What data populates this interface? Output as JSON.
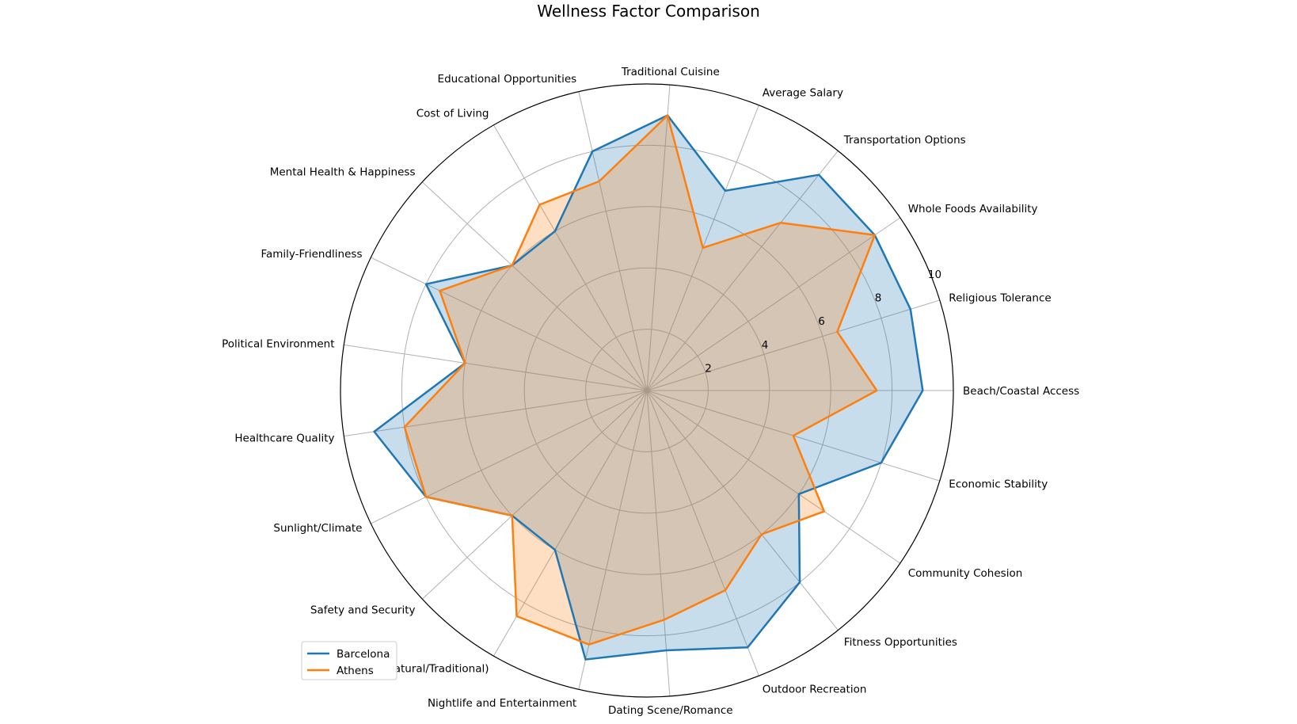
{
  "chart_data": {
    "type": "radar",
    "title": "Wellness Factor Comparison",
    "categories": [
      "Beach/Coastal Access",
      "Religious Tolerance",
      "Whole Foods Availability",
      "Transportation Options",
      "Average Salary",
      "Traditional Cuisine",
      "Educational Opportunities",
      "Cost of Living",
      "Mental Health & Happiness",
      "Family-Friendliness",
      "Political Environment",
      "Healthcare Quality",
      "Sunlight/Climate",
      "Safety and Security",
      "Food Quality (Natural/Traditional)",
      "Nightlife and Entertainment",
      "Dating Scene/Romance",
      "Outdoor Recreation",
      "Fitness Opportunities",
      "Community Cohesion",
      "Economic Stability"
    ],
    "series": [
      {
        "name": "Barcelona",
        "color": "#1f77b4",
        "values": [
          9,
          9,
          9,
          9,
          7,
          9,
          8,
          6,
          6,
          8,
          6,
          9,
          8,
          6,
          6,
          9,
          8.5,
          9,
          8,
          6,
          8
        ]
      },
      {
        "name": "Athens",
        "color": "#ff7f0e",
        "values": [
          7.5,
          6.5,
          9,
          7,
          5,
          9,
          7,
          7,
          6,
          7.5,
          6,
          8,
          8,
          6,
          8.5,
          8.5,
          7.5,
          7,
          6,
          7,
          5
        ]
      }
    ],
    "rlim": [
      0,
      10
    ],
    "rticks": [
      "2",
      "4",
      "6",
      "8",
      "10"
    ],
    "grid": true,
    "legend_position": "lower-left"
  }
}
